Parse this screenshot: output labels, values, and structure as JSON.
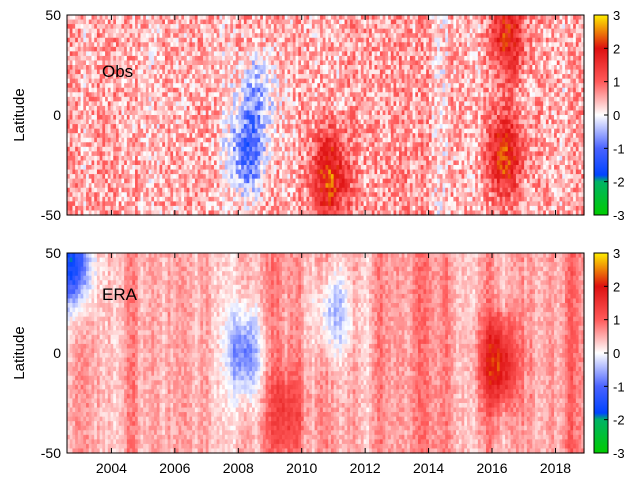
{
  "chart_data": [
    {
      "type": "heatmap",
      "panel_label": "Obs",
      "ylabel": "Latitude",
      "y_ticks": [
        "50",
        "0",
        "-50"
      ],
      "y_range": [
        -50,
        50
      ],
      "x_range": [
        2002.6,
        2018.9
      ],
      "x_ticks": [],
      "colorbar": {
        "range": [
          -3,
          3
        ],
        "ticks": [
          "3",
          "2",
          "1",
          "0",
          "-1",
          "-2",
          "-3"
        ]
      },
      "anomaly_regions": [
        {
          "x": 2008.3,
          "lat": -20,
          "value": -1.6
        },
        {
          "x": 2008.6,
          "lat": 10,
          "value": -1.1
        },
        {
          "x": 2010.9,
          "lat": -30,
          "value": 1.8
        },
        {
          "x": 2016.4,
          "lat": -20,
          "value": 1.7
        },
        {
          "x": 2016.5,
          "lat": 40,
          "value": 1.5
        }
      ]
    },
    {
      "type": "heatmap",
      "panel_label": "ERA",
      "ylabel": "Latitude",
      "y_ticks": [
        "50",
        "0",
        "-50"
      ],
      "y_range": [
        -50,
        50
      ],
      "x_range": [
        2002.6,
        2018.9
      ],
      "x_ticks": [
        "2004",
        "2006",
        "2008",
        "2010",
        "2012",
        "2014",
        "2016",
        "2018"
      ],
      "colorbar": {
        "range": [
          -3,
          3
        ],
        "ticks": [
          "3",
          "2",
          "1",
          "0",
          "-1",
          "-2",
          "-3"
        ]
      },
      "anomaly_regions": [
        {
          "x": 2002.8,
          "lat": 45,
          "value": -2.2
        },
        {
          "x": 2008.2,
          "lat": 0,
          "value": -1.3
        },
        {
          "x": 2011.0,
          "lat": 20,
          "value": -1.0
        },
        {
          "x": 2016.2,
          "lat": -5,
          "value": 1.7
        },
        {
          "x": 2009.5,
          "lat": -30,
          "value": 0.8
        }
      ]
    }
  ]
}
